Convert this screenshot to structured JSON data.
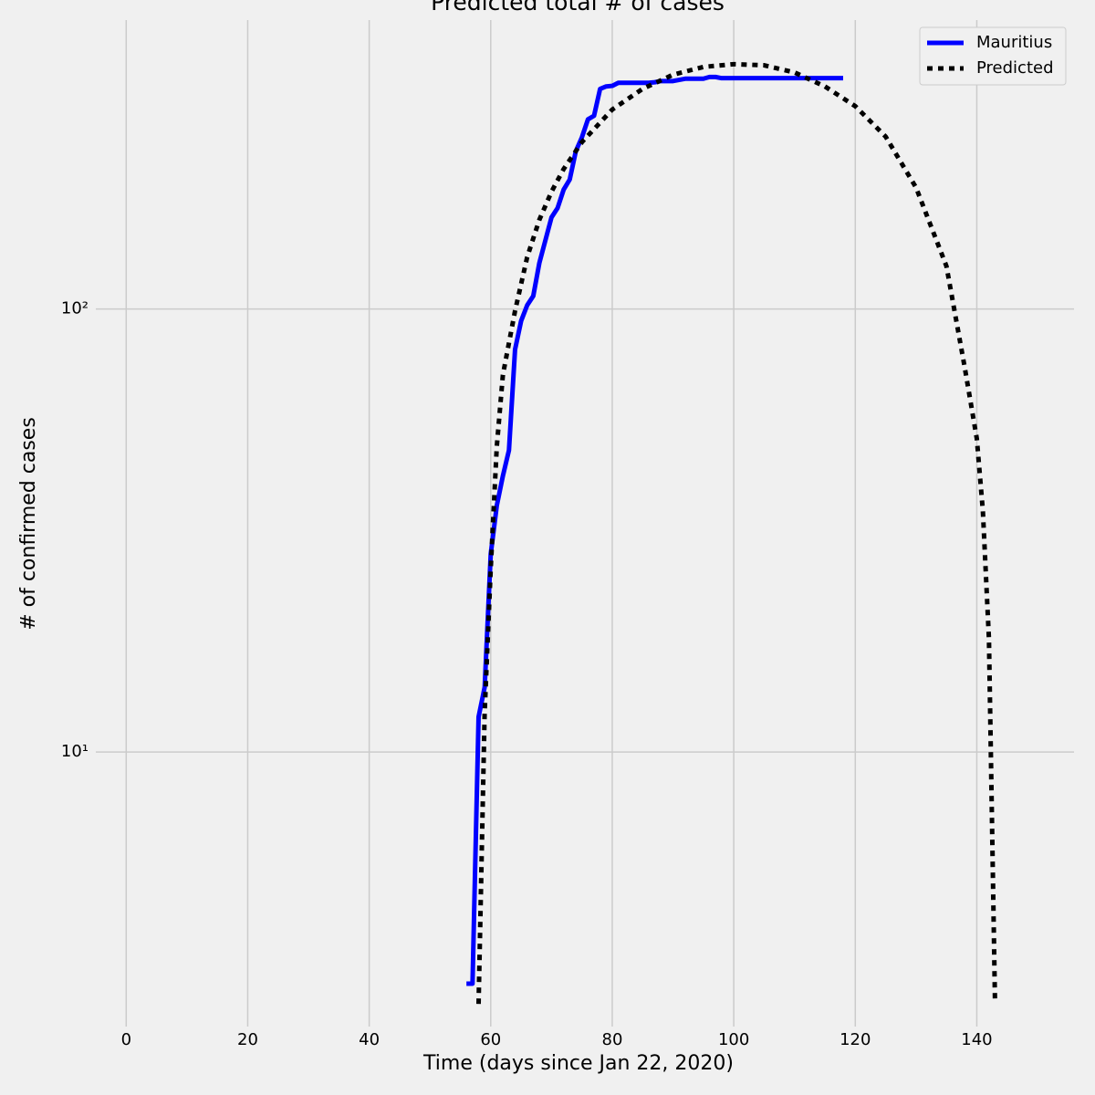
{
  "chart_data": {
    "type": "line",
    "title": "Predicted total # of cases",
    "xlabel": "Time (days since Jan 22, 2020)",
    "ylabel": "# of confirmed cases",
    "yscale": "log",
    "grid": true,
    "legend": "upper right",
    "xlim": [
      -5,
      156
    ],
    "xticks": [
      0,
      20,
      40,
      60,
      80,
      100,
      120,
      140
    ],
    "ylim": [
      2.4,
      449
    ],
    "yticks": [
      {
        "value": 10,
        "label": "10¹"
      },
      {
        "value": 100,
        "label": "10²"
      }
    ],
    "series": [
      {
        "name": "Mauritius",
        "color": "#0000ff",
        "style": "solid",
        "x": [
          56,
          57,
          58,
          59,
          60,
          61,
          62,
          63,
          64,
          65,
          66,
          67,
          68,
          69,
          70,
          71,
          72,
          73,
          74,
          75,
          76,
          77,
          78,
          79,
          80,
          81,
          82,
          83,
          84,
          85,
          86,
          87,
          88,
          89,
          90,
          91,
          92,
          93,
          94,
          95,
          96,
          97,
          98,
          99,
          100,
          101,
          102,
          103,
          104,
          105,
          106,
          107,
          108,
          109,
          110,
          111,
          112,
          113,
          114,
          115,
          116,
          117,
          118
        ],
        "values": [
          3,
          3,
          12,
          14,
          28,
          36,
          42,
          48,
          81,
          94,
          102,
          107,
          127,
          143,
          161,
          169,
          186,
          196,
          227,
          244,
          268,
          273,
          314,
          318,
          319,
          324,
          324,
          324,
          324,
          324,
          324,
          325,
          327,
          327,
          327,
          329,
          331,
          331,
          331,
          331,
          334,
          334,
          332,
          332,
          332,
          332,
          332,
          332,
          332,
          332,
          332,
          332,
          332,
          332,
          332,
          332,
          332,
          332,
          332,
          332,
          332,
          332,
          332
        ]
      },
      {
        "name": "Predicted",
        "color": "#000000",
        "style": "dotted",
        "x": [
          58,
          59,
          60,
          61,
          62,
          64,
          66,
          68,
          70,
          72,
          75,
          80,
          85,
          90,
          95,
          100,
          105,
          110,
          115,
          120,
          125,
          130,
          135,
          138,
          140,
          141,
          142,
          143
        ],
        "values": [
          2.7,
          12.3,
          26,
          49,
          71,
          99,
          131,
          159,
          184,
          207,
          238,
          282,
          314,
          338,
          352,
          357,
          355,
          342,
          318,
          287,
          245,
          188,
          125,
          74,
          51,
          35,
          18,
          2.7
        ]
      }
    ]
  }
}
